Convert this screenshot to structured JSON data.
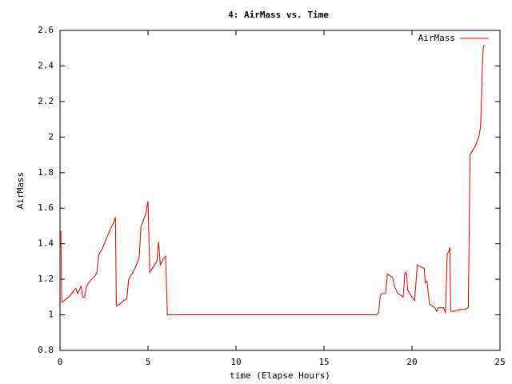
{
  "chart_data": {
    "type": "line",
    "title": "4: AirMass vs. Time",
    "x_label": "time (Elapse Hours)",
    "y_label": "AirMass",
    "x": [
      0,
      0.05,
      0.1,
      0.5,
      0.9,
      1.0,
      1.2,
      1.3,
      1.4,
      1.5,
      1.7,
      2.0,
      2.1,
      2.2,
      2.4,
      2.6,
      2.9,
      3.1,
      3.15,
      3.2,
      3.4,
      3.6,
      3.8,
      3.9,
      4.2,
      4.5,
      4.6,
      4.7,
      4.9,
      5.0,
      5.1,
      5.3,
      5.5,
      5.6,
      5.7,
      5.9,
      6.0,
      6.1,
      18.0,
      18.1,
      18.2,
      18.3,
      18.5,
      18.6,
      18.9,
      19.0,
      19.2,
      19.5,
      19.6,
      19.7,
      19.75,
      20.0,
      20.15,
      20.3,
      20.5,
      20.7,
      20.75,
      20.85,
      21.0,
      21.3,
      21.4,
      21.5,
      21.8,
      21.9,
      22.0,
      22.1,
      22.15,
      22.2,
      22.4,
      22.7,
      23.0,
      23.2,
      23.3,
      23.6,
      23.8,
      23.9,
      24.0,
      24.05,
      24.1
    ],
    "series": [
      {
        "name": "AirMass",
        "color": "#e00000",
        "values": [
          1.46,
          1.47,
          1.07,
          1.1,
          1.15,
          1.12,
          1.16,
          1.1,
          1.1,
          1.16,
          1.19,
          1.22,
          1.24,
          1.34,
          1.37,
          1.42,
          1.49,
          1.53,
          1.55,
          1.05,
          1.06,
          1.08,
          1.09,
          1.2,
          1.25,
          1.32,
          1.5,
          1.52,
          1.58,
          1.64,
          1.24,
          1.27,
          1.3,
          1.41,
          1.28,
          1.32,
          1.33,
          1.0,
          1.0,
          1.01,
          1.11,
          1.12,
          1.12,
          1.23,
          1.21,
          1.16,
          1.12,
          1.1,
          1.24,
          1.23,
          1.14,
          1.1,
          1.08,
          1.28,
          1.27,
          1.26,
          1.18,
          1.19,
          1.06,
          1.04,
          1.02,
          1.04,
          1.04,
          1.01,
          1.34,
          1.36,
          1.38,
          1.02,
          1.02,
          1.03,
          1.03,
          1.04,
          1.9,
          1.95,
          2.0,
          2.06,
          2.4,
          2.5,
          2.52
        ]
      }
    ],
    "xlim": [
      0,
      25
    ],
    "xticks": [
      0,
      5,
      10,
      15,
      20,
      25
    ],
    "ylim": [
      0.8,
      2.6
    ],
    "yticks": [
      0.8,
      1,
      1.2,
      1.4,
      1.6,
      1.8,
      2,
      2.2,
      2.4,
      2.6
    ],
    "grid": false,
    "legend": "top-right"
  }
}
